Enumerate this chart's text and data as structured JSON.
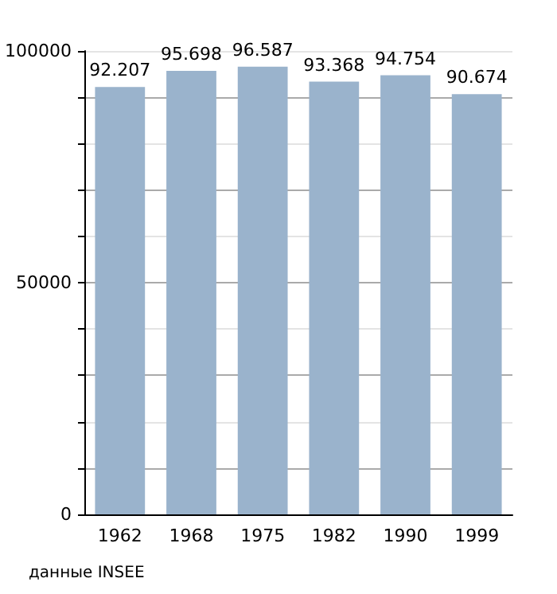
{
  "chart_data": {
    "type": "bar",
    "categories": [
      "1962",
      "1968",
      "1975",
      "1982",
      "1990",
      "1999"
    ],
    "values": [
      92207,
      95698,
      96587,
      93368,
      94754,
      90674
    ],
    "value_labels": [
      "92.207",
      "95.698",
      "96.587",
      "93.368",
      "94.754",
      "90.674"
    ],
    "color": "#9ab3cc",
    "ylim": [
      0,
      100000
    ],
    "yticks": [
      0,
      {
        "value": 10000,
        "label": null
      },
      {
        "value": 20000,
        "label": null
      },
      {
        "value": 30000,
        "label": null
      },
      {
        "value": 40000,
        "label": null
      },
      50000,
      {
        "value": 60000,
        "label": null
      },
      {
        "value": 70000,
        "label": null
      },
      {
        "value": 80000,
        "label": null
      },
      {
        "value": 90000,
        "label": null
      },
      100000
    ],
    "grid": "y",
    "annotations": [
      "данные INSEE"
    ]
  }
}
